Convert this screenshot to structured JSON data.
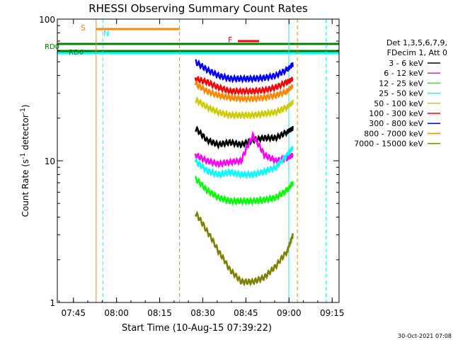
{
  "chart_data": {
    "type": "line",
    "title": "RHESSI Observing Summary Count Rates",
    "xlabel": "Start Time (10-Aug-15 07:39:22)",
    "ylabel_main": "Count Rate (s",
    "ylabel_sup1": "-1",
    "ylabel_mid": " detector",
    "ylabel_sup2": "-1",
    "ylabel_end": ")",
    "yscale": "log",
    "ylim": [
      1,
      100
    ],
    "xlim_minutes": [
      0,
      98
    ],
    "x_ticks": [
      {
        "label": "07:45",
        "minute": 5.6
      },
      {
        "label": "08:00",
        "minute": 20.6
      },
      {
        "label": "08:15",
        "minute": 35.6
      },
      {
        "label": "08:30",
        "minute": 50.6
      },
      {
        "label": "08:45",
        "minute": 65.6
      },
      {
        "label": "09:00",
        "minute": 80.6
      },
      {
        "label": "09:15",
        "minute": 95.6
      }
    ],
    "y_ticks": [
      {
        "label": "1",
        "value": 1
      },
      {
        "label": "10",
        "value": 10
      },
      {
        "label": "100",
        "value": 100
      }
    ],
    "legend": {
      "header1": "Det 1,3,5,6,7,9,",
      "header2": "FDecim 1, Att 0",
      "entries": [
        {
          "label": "3 - 6 keV",
          "color": "#000000"
        },
        {
          "label": "6 - 12 keV",
          "color": "#ff00ff"
        },
        {
          "label": "12 - 25 keV",
          "color": "#00ff00"
        },
        {
          "label": "25 - 50 keV",
          "color": "#00ffff"
        },
        {
          "label": "50 - 100 keV",
          "color": "#cccc00"
        },
        {
          "label": "100 - 300 keV",
          "color": "#ff0000"
        },
        {
          "label": "300 - 800 keV",
          "color": "#0000ff"
        },
        {
          "label": "800 - 7000 keV",
          "color": "#ff8800"
        },
        {
          "label": "7000 - 15000 keV",
          "color": "#808000"
        }
      ]
    },
    "series": [
      {
        "name": "3 - 6 keV",
        "color": "#000000",
        "x": [
          48,
          52,
          56,
          60,
          64,
          68,
          72,
          76,
          80,
          82
        ],
        "y": [
          17,
          14,
          13,
          13.5,
          13,
          14,
          14.5,
          14.5,
          16,
          17
        ]
      },
      {
        "name": "6 - 12 keV",
        "color": "#ff00ff",
        "x": [
          48,
          52,
          56,
          60,
          64,
          68,
          72,
          76,
          80,
          82
        ],
        "y": [
          11,
          10,
          9.5,
          9.8,
          10,
          15,
          11,
          10,
          10.5,
          11
        ]
      },
      {
        "name": "12 - 25 keV",
        "color": "#00ff00",
        "x": [
          48,
          52,
          56,
          60,
          64,
          68,
          72,
          76,
          80,
          82
        ],
        "y": [
          7.5,
          6.2,
          5.5,
          5.2,
          5.2,
          5.2,
          5.3,
          5.5,
          6.2,
          7
        ]
      },
      {
        "name": "25 - 50 keV",
        "color": "#00ffff",
        "x": [
          48,
          52,
          56,
          60,
          64,
          68,
          72,
          76,
          80,
          82
        ],
        "y": [
          10,
          8.5,
          8,
          8.3,
          8,
          8,
          8.4,
          9,
          11,
          12.5
        ]
      },
      {
        "name": "50 - 100 keV",
        "color": "#cccc00",
        "x": [
          48,
          52,
          56,
          60,
          64,
          68,
          72,
          76,
          80,
          82
        ],
        "y": [
          27,
          24,
          22,
          21,
          21,
          21,
          21.5,
          22,
          24,
          26
        ]
      },
      {
        "name": "100 - 300 keV",
        "color": "#ff0000",
        "x": [
          48,
          52,
          56,
          60,
          64,
          68,
          72,
          76,
          80,
          82
        ],
        "y": [
          38,
          36,
          33,
          31,
          31,
          31,
          31.5,
          33,
          36,
          38
        ]
      },
      {
        "name": "300 - 800 keV",
        "color": "#0000ff",
        "x": [
          48,
          52,
          56,
          60,
          64,
          68,
          72,
          76,
          80,
          82
        ],
        "y": [
          50,
          44,
          40,
          38,
          38,
          38,
          38.5,
          40,
          44,
          48
        ]
      },
      {
        "name": "800 - 7000 keV",
        "color": "#ff8800",
        "x": [
          48,
          52,
          56,
          60,
          64,
          68,
          72,
          76,
          80,
          82
        ],
        "y": [
          35,
          31,
          29,
          28,
          27.5,
          27.5,
          28,
          29,
          31,
          34
        ]
      },
      {
        "name": "7000 - 15000 keV",
        "color": "#808000",
        "x": [
          48,
          52,
          56,
          60,
          64,
          68,
          72,
          76,
          80,
          82
        ],
        "y": [
          4.3,
          3.2,
          2.3,
          1.7,
          1.4,
          1.4,
          1.5,
          1.8,
          2.3,
          3
        ]
      }
    ],
    "annotations": {
      "S": "S",
      "N": "N",
      "F": "F",
      "RD0": "RD0",
      "RD6": "RD6"
    },
    "timestamp": "30-Oct-2021 07:08"
  }
}
